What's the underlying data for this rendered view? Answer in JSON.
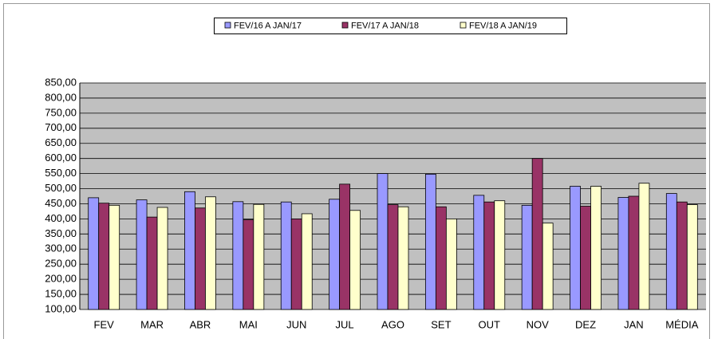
{
  "chart_data": {
    "type": "bar",
    "categories": [
      "FEV",
      "MAR",
      "ABR",
      "MAI",
      "JUN",
      "JUL",
      "AGO",
      "SET",
      "OUT",
      "NOV",
      "DEZ",
      "JAN",
      "MÉDIA"
    ],
    "series": [
      {
        "name": "FEV/16 A JAN/17",
        "color": "#9999ff",
        "values": [
          470,
          463,
          490,
          457,
          456,
          465,
          550,
          548,
          478,
          445,
          508,
          471,
          484
        ]
      },
      {
        "name": "FEV/17 A JAN/18",
        "color": "#993366",
        "values": [
          452,
          406,
          436,
          397,
          400,
          515,
          447,
          440,
          456,
          600,
          442,
          475,
          456
        ]
      },
      {
        "name": "FEV/18 A JAN/19",
        "color": "#ffffcc",
        "values": [
          445,
          438,
          473,
          448,
          417,
          428,
          440,
          400,
          460,
          386,
          508,
          518,
          447
        ]
      }
    ],
    "ylim": [
      100,
      850
    ],
    "yticks": [
      {
        "value": 100,
        "label": "100,00"
      },
      {
        "value": 150,
        "label": "150,00"
      },
      {
        "value": 200,
        "label": "200,00"
      },
      {
        "value": 250,
        "label": "250,00"
      },
      {
        "value": 300,
        "label": "300,00"
      },
      {
        "value": 350,
        "label": "350,00"
      },
      {
        "value": 400,
        "label": "400,00"
      },
      {
        "value": 450,
        "label": "450,00"
      },
      {
        "value": 500,
        "label": "500,00"
      },
      {
        "value": 550,
        "label": "550,00"
      },
      {
        "value": 600,
        "label": "600,00"
      },
      {
        "value": 650,
        "label": "650,00"
      },
      {
        "value": 700,
        "label": "700,00"
      },
      {
        "value": 750,
        "label": "750,00"
      },
      {
        "value": 800,
        "label": "800,00"
      },
      {
        "value": 850,
        "label": "850,00"
      }
    ],
    "grid": true,
    "legend": "top"
  }
}
